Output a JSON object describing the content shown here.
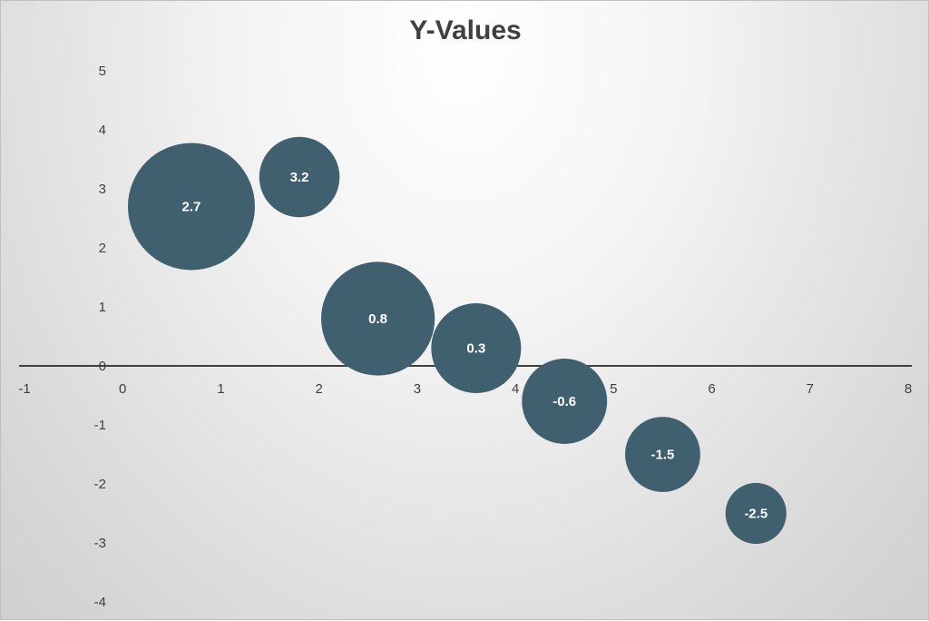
{
  "chart_data": {
    "type": "bubble",
    "title": "Y-Values",
    "xlabel": "",
    "ylabel": "",
    "xlim": [
      -1,
      8
    ],
    "ylim": [
      -4,
      5
    ],
    "x_ticks": [
      -1,
      0,
      1,
      2,
      3,
      4,
      5,
      6,
      7,
      8
    ],
    "y_ticks": [
      5,
      4,
      3,
      2,
      1,
      0,
      -1,
      -2,
      -3,
      -4
    ],
    "grid": false,
    "legend": "none",
    "bubble_color": "#41606f",
    "points": [
      {
        "x": 0.7,
        "y": 2.7,
        "size": 10,
        "label": "2.7"
      },
      {
        "x": 1.8,
        "y": 3.2,
        "size": 4,
        "label": "3.2"
      },
      {
        "x": 2.6,
        "y": 0.8,
        "size": 8,
        "label": "0.8"
      },
      {
        "x": 3.6,
        "y": 0.3,
        "size": 5,
        "label": "0.3"
      },
      {
        "x": 4.5,
        "y": -0.6,
        "size": 4.5,
        "label": "-0.6"
      },
      {
        "x": 5.5,
        "y": -1.5,
        "size": 3.5,
        "label": "-1.5"
      },
      {
        "x": 6.45,
        "y": -2.5,
        "size": 2.3,
        "label": "-2.5"
      }
    ]
  }
}
